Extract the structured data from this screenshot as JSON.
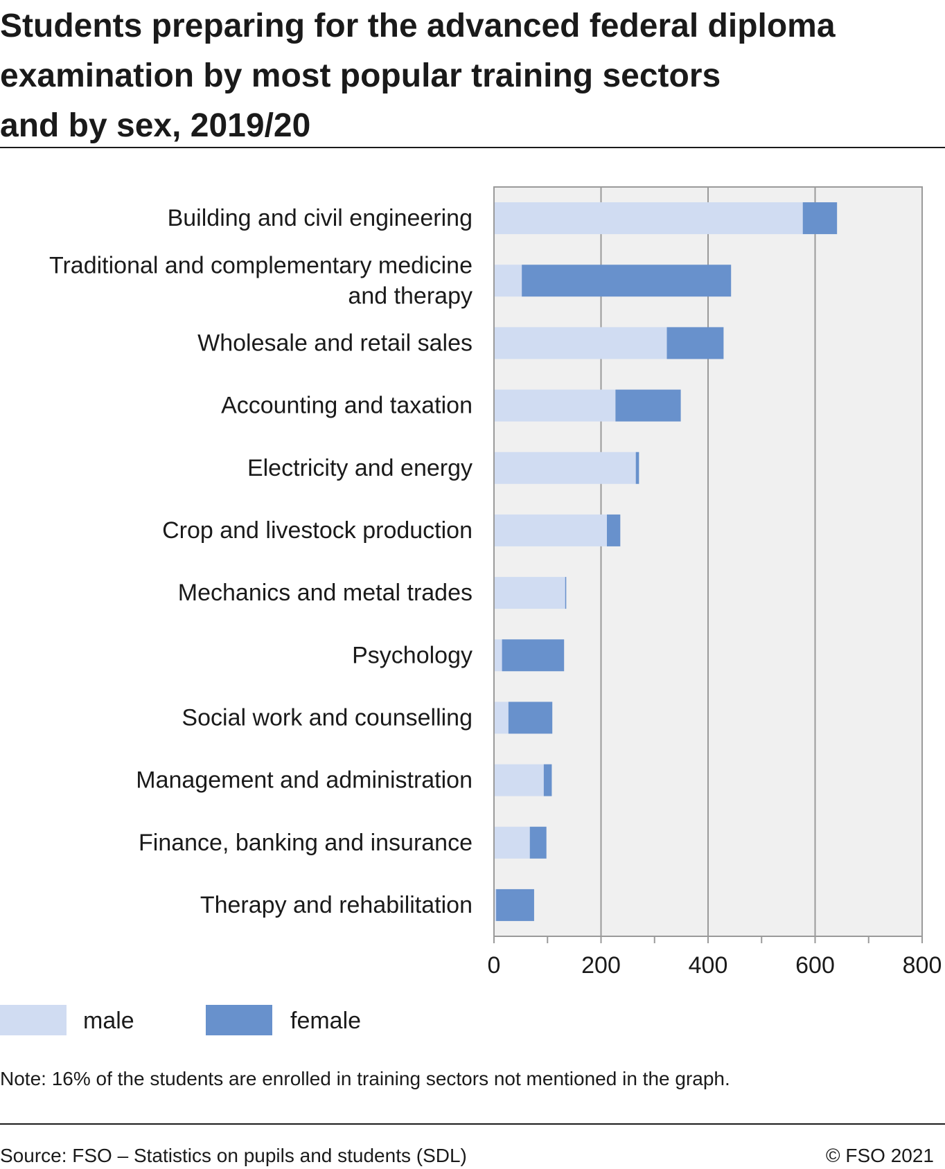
{
  "title_lines": [
    "Students preparing for the advanced federal diploma",
    "examination by most popular training sectors",
    "and by sex, 2019/20"
  ],
  "note": "Note: 16% of the students are enrolled in training sectors not mentioned in the graph.",
  "source": "Source: FSO – Statistics on pupils and students (SDL)",
  "copyright": "© FSO 2021",
  "colors": {
    "male": "#d0dcf2",
    "female": "#6891cc",
    "plot_bg": "#f0f0f0",
    "grid": "#9a9a9a"
  },
  "chart_data": {
    "type": "bar",
    "orientation": "horizontal",
    "stacked": true,
    "categories": [
      [
        "Building and civil engineering"
      ],
      [
        "Traditional and complementary medicine",
        "and therapy"
      ],
      [
        "Wholesale and retail sales"
      ],
      [
        "Accounting and taxation"
      ],
      [
        "Electricity and energy"
      ],
      [
        "Crop and livestock production"
      ],
      [
        "Mechanics and metal trades"
      ],
      [
        "Psychology"
      ],
      [
        "Social work and counselling"
      ],
      [
        "Management and administration"
      ],
      [
        "Finance, banking and insurance"
      ],
      [
        "Therapy and rehabilitation"
      ]
    ],
    "series": [
      {
        "name": "male",
        "color": "#d0dcf2",
        "values": [
          577,
          52,
          323,
          227,
          265,
          211,
          133,
          15,
          27,
          93,
          67,
          4
        ]
      },
      {
        "name": "female",
        "color": "#6891cc",
        "values": [
          64,
          391,
          106,
          122,
          6,
          25,
          2,
          116,
          82,
          15,
          31,
          71
        ]
      }
    ],
    "xlim": [
      0,
      800
    ],
    "xticks": [
      0,
      200,
      400,
      600,
      800
    ],
    "xtick_labels": [
      "0",
      "200",
      "400",
      "600",
      "800"
    ],
    "grid": true,
    "legend_position": "bottom-left"
  }
}
